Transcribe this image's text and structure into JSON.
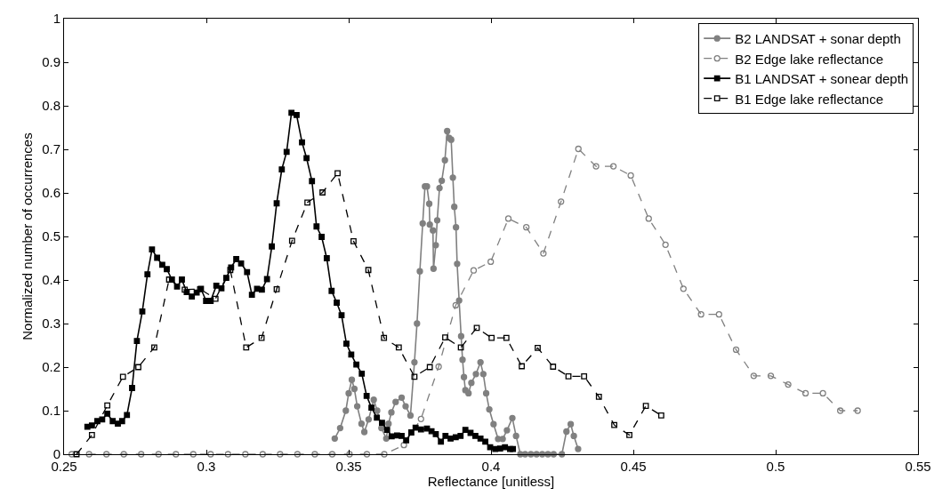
{
  "chart_data": {
    "type": "line",
    "xlabel": "Reflectance [unitless]",
    "ylabel": "Normalized number of occurrences",
    "xlim": [
      0.25,
      0.55
    ],
    "xticks": [
      0.25,
      0.3,
      0.35,
      0.4,
      0.45,
      0.5,
      0.55
    ],
    "ylim": [
      0,
      1
    ],
    "yticks": [
      0,
      0.1,
      0.2,
      0.3,
      0.4,
      0.5,
      0.6,
      0.7,
      0.8,
      0.9,
      1
    ],
    "legend": "top right",
    "series": [
      {
        "name": "B2 LANDSAT + sonar depth",
        "color": "#808080",
        "marker": "circle",
        "line_style": "solid",
        "x": [
          0.3451,
          0.347,
          0.349,
          0.35,
          0.3511,
          0.352,
          0.353,
          0.3545,
          0.3555,
          0.357,
          0.3588,
          0.36,
          0.3615,
          0.3632,
          0.364,
          0.365,
          0.3665,
          0.3686,
          0.37,
          0.3717,
          0.3731,
          0.374,
          0.375,
          0.376,
          0.3768,
          0.3775,
          0.3783,
          0.3785,
          0.3796,
          0.3798,
          0.3806,
          0.3811,
          0.3819,
          0.3827,
          0.3838,
          0.3846,
          0.3853,
          0.386,
          0.3866,
          0.3871,
          0.3877,
          0.3881,
          0.3888,
          0.3895,
          0.39,
          0.3905,
          0.391,
          0.3921,
          0.3931,
          0.3947,
          0.3963,
          0.3973,
          0.3983,
          0.3994,
          0.4009,
          0.4025,
          0.4041,
          0.4056,
          0.4075,
          0.4088,
          0.4103,
          0.412,
          0.414,
          0.416,
          0.418,
          0.42,
          0.422,
          0.4249,
          0.4265,
          0.428,
          0.4291,
          0.4306
        ],
        "values": [
          0.036,
          0.06,
          0.1,
          0.14,
          0.171,
          0.15,
          0.11,
          0.07,
          0.051,
          0.08,
          0.125,
          0.1,
          0.06,
          0.036,
          0.07,
          0.096,
          0.12,
          0.13,
          0.11,
          0.089,
          0.211,
          0.3,
          0.42,
          0.53,
          0.615,
          0.615,
          0.575,
          0.527,
          0.514,
          0.426,
          0.48,
          0.537,
          0.611,
          0.628,
          0.675,
          0.742,
          0.726,
          0.722,
          0.635,
          0.568,
          0.521,
          0.437,
          0.353,
          0.271,
          0.217,
          0.177,
          0.147,
          0.14,
          0.164,
          0.184,
          0.211,
          0.184,
          0.14,
          0.103,
          0.069,
          0.035,
          0.035,
          0.055,
          0.083,
          0.042,
          0,
          0,
          0,
          0,
          0,
          0,
          0,
          0,
          0.052,
          0.069,
          0.042,
          0.012
        ]
      },
      {
        "name": "B2 Edge lake reflectance",
        "color": "#808080",
        "marker": "circle",
        "line_style": "dashed",
        "x": [
          0.2527,
          0.2588,
          0.2649,
          0.271,
          0.2771,
          0.2832,
          0.2893,
          0.2954,
          0.3015,
          0.3076,
          0.3137,
          0.3198,
          0.3259,
          0.332,
          0.3381,
          0.3442,
          0.3503,
          0.3564,
          0.3625,
          0.3694,
          0.3754,
          0.3816,
          0.3876,
          0.3939,
          0.3999,
          0.4061,
          0.4124,
          0.4184,
          0.4246,
          0.4307,
          0.4369,
          0.443,
          0.4491,
          0.4554,
          0.4613,
          0.4676,
          0.4738,
          0.4801,
          0.4861,
          0.4923,
          0.4983,
          0.5044,
          0.5105,
          0.5166,
          0.5227,
          0.5288
        ],
        "values": [
          0,
          0,
          0,
          0,
          0,
          0,
          0,
          0,
          0,
          0,
          0,
          0,
          0,
          0,
          0,
          0,
          0,
          0,
          0,
          0.021,
          0.081,
          0.201,
          0.342,
          0.422,
          0.442,
          0.541,
          0.521,
          0.461,
          0.58,
          0.701,
          0.661,
          0.661,
          0.64,
          0.541,
          0.481,
          0.38,
          0.321,
          0.321,
          0.24,
          0.18,
          0.18,
          0.16,
          0.14,
          0.14,
          0.1,
          0.1
        ]
      },
      {
        "name": "B1 LANDSAT + sonear depth",
        "color": "#000000",
        "marker": "square",
        "line_style": "solid",
        "x": [
          0.2582,
          0.2598,
          0.2617,
          0.2634,
          0.2652,
          0.2671,
          0.2689,
          0.2704,
          0.2721,
          0.2739,
          0.2756,
          0.2775,
          0.2793,
          0.2809,
          0.2827,
          0.2845,
          0.2861,
          0.2879,
          0.2897,
          0.2914,
          0.2931,
          0.2949,
          0.2966,
          0.2981,
          0.2999,
          0.3015,
          0.3035,
          0.3053,
          0.307,
          0.3087,
          0.3105,
          0.3122,
          0.3143,
          0.316,
          0.3178,
          0.3195,
          0.3213,
          0.323,
          0.3247,
          0.3265,
          0.3282,
          0.3299,
          0.3317,
          0.3336,
          0.3352,
          0.3371,
          0.3387,
          0.3405,
          0.3423,
          0.344,
          0.3458,
          0.3475,
          0.3492,
          0.3509,
          0.3527,
          0.3546,
          0.3563,
          0.358,
          0.3599,
          0.3617,
          0.3635,
          0.3651,
          0.367,
          0.3686,
          0.3702,
          0.372,
          0.3735,
          0.3754,
          0.3775,
          0.3791,
          0.3806,
          0.3824,
          0.384,
          0.3858,
          0.3876,
          0.3893,
          0.391,
          0.3928,
          0.3945,
          0.3963,
          0.398,
          0.3997,
          0.4015,
          0.4032,
          0.4049,
          0.4067,
          0.4077
        ],
        "values": [
          0.063,
          0.066,
          0.076,
          0.08,
          0.093,
          0.076,
          0.07,
          0.076,
          0.09,
          0.152,
          0.26,
          0.328,
          0.413,
          0.47,
          0.451,
          0.435,
          0.425,
          0.401,
          0.385,
          0.401,
          0.372,
          0.362,
          0.371,
          0.38,
          0.352,
          0.352,
          0.387,
          0.381,
          0.405,
          0.429,
          0.448,
          0.438,
          0.418,
          0.366,
          0.38,
          0.378,
          0.402,
          0.477,
          0.576,
          0.654,
          0.694,
          0.784,
          0.779,
          0.716,
          0.68,
          0.627,
          0.523,
          0.499,
          0.45,
          0.375,
          0.348,
          0.319,
          0.254,
          0.229,
          0.206,
          0.185,
          0.134,
          0.107,
          0.084,
          0.072,
          0.056,
          0.041,
          0.043,
          0.042,
          0.032,
          0.05,
          0.061,
          0.057,
          0.059,
          0.053,
          0.046,
          0.029,
          0.042,
          0.036,
          0.039,
          0.042,
          0.056,
          0.049,
          0.042,
          0.036,
          0.029,
          0.016,
          0.012,
          0.013,
          0.016,
          0.012,
          0.012
        ]
      },
      {
        "name": "B1 Edge lake reflectance",
        "color": "#000000",
        "marker": "square",
        "line_style": "dashed",
        "x": [
          0.2544,
          0.2598,
          0.2652,
          0.2707,
          0.2761,
          0.2817,
          0.2869,
          0.2924,
          0.2978,
          0.3032,
          0.3084,
          0.314,
          0.3194,
          0.3247,
          0.3301,
          0.3355,
          0.3408,
          0.3461,
          0.3517,
          0.3569,
          0.3624,
          0.3676,
          0.3731,
          0.3785,
          0.3839,
          0.3894,
          0.395,
          0.4002,
          0.4054,
          0.4108,
          0.4164,
          0.4218,
          0.4272,
          0.4327,
          0.4379,
          0.4433,
          0.4486,
          0.4544,
          0.4598
        ],
        "values": [
          0,
          0.044,
          0.112,
          0.178,
          0.2,
          0.245,
          0.401,
          0.378,
          0.379,
          0.357,
          0.423,
          0.245,
          0.267,
          0.379,
          0.49,
          0.578,
          0.601,
          0.645,
          0.489,
          0.423,
          0.267,
          0.245,
          0.178,
          0.2,
          0.268,
          0.245,
          0.29,
          0.267,
          0.267,
          0.202,
          0.244,
          0.201,
          0.179,
          0.179,
          0.132,
          0.067,
          0.044,
          0.111,
          0.089
        ]
      }
    ]
  }
}
